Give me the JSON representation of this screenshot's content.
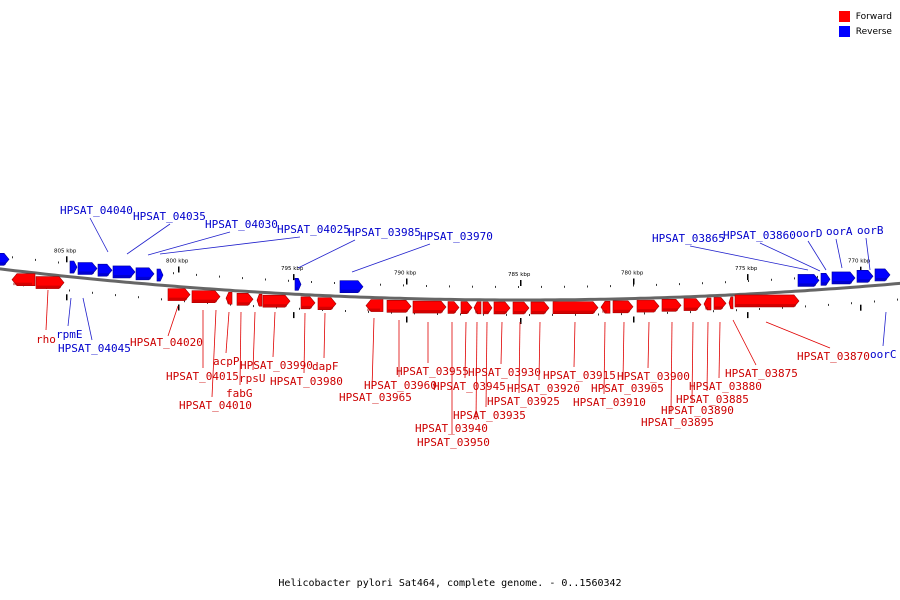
{
  "legend": {
    "forward_label": "Forward",
    "reverse_label": "Reverse",
    "forward_color": "#ff0000",
    "reverse_color": "#0000ff"
  },
  "caption": "Helicobacter pylori Sat464, complete genome. - 0..1560342",
  "ticks": [
    "805 kbp",
    "800 kbp",
    "795 kbp",
    "790 kbp",
    "785 kbp",
    "780 kbp",
    "775 kbp",
    "770 kbp"
  ],
  "reverse_genes": [
    "HPSAT_04045",
    "HPSAT_04040",
    "HPSAT_04035",
    "HPSAT_04030",
    "HPSAT_04025",
    "HPSAT_03985",
    "HPSAT_03970",
    "HPSAT_03865",
    "HPSAT_03860",
    "oorD",
    "oorA",
    "oorB",
    "oorC",
    "rpmE"
  ],
  "forward_genes": [
    "rho",
    "HPSAT_04020",
    "HPSAT_04015",
    "HPSAT_04010",
    "acpP",
    "fabG",
    "rpsU",
    "HPSAT_03990",
    "HPSAT_03980",
    "dapF",
    "HPSAT_03965",
    "HPSAT_03960",
    "HPSAT_03955",
    "HPSAT_03950",
    "HPSAT_03945",
    "HPSAT_03940",
    "HPSAT_03935",
    "HPSAT_03930",
    "HPSAT_03925",
    "HPSAT_03920",
    "HPSAT_03915",
    "HPSAT_03910",
    "HPSAT_03905",
    "HPSAT_03900",
    "HPSAT_03895",
    "HPSAT_03890",
    "HPSAT_03885",
    "HPSAT_03880",
    "HPSAT_03875",
    "HPSAT_03870"
  ]
}
